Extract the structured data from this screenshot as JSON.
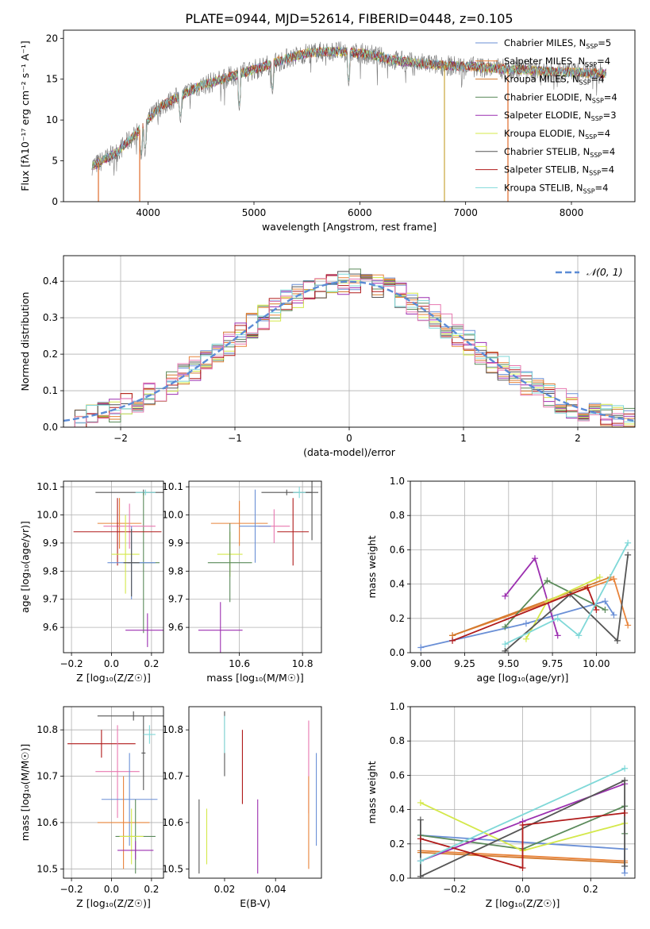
{
  "figure_title": "PLATE=0944, MJD=52614, FIBERID=0448, z=0.105",
  "colors": {
    "Chabrier MILES": "#6a8fd6",
    "Salpeter MILES": "#e8833a",
    "Kroupa MILES": "#d47a2e",
    "Chabrier ELODIE": "#5a8a5a",
    "Salpeter ELODIE": "#9c2fb0",
    "Kroupa ELODIE": "#d4e84a",
    "Chabrier STELIB": "#555555",
    "Salpeter STELIB": "#b01a1a",
    "Kroupa STELIB": "#7fd8d8",
    "extra_pink": "#e878b0",
    "grid": "#b0b0b0",
    "gauss": "#5b8bd6"
  },
  "chart_data": [
    {
      "id": "spectrum",
      "type": "line",
      "title": "PLATE=0944, MJD=52614, FIBERID=0448, z=0.105",
      "xlabel": "wavelength [Angstrom, rest frame]",
      "ylabel": "Flux [fλ10⁻¹⁷ erg cm⁻² s⁻¹ A⁻¹]",
      "xlim": [
        3200,
        8600
      ],
      "ylim": [
        0,
        21
      ],
      "xticks": [
        "4000",
        "5000",
        "6000",
        "7000",
        "8000"
      ],
      "yticks": [
        "0",
        "5",
        "10",
        "15",
        "20"
      ],
      "grid": false,
      "legend_position": "upper right",
      "legend": [
        "Chabrier MILES, N_SSP=5",
        "Salpeter MILES, N_SSP=4",
        "Kroupa MILES, N_SSP=4",
        "Chabrier ELODIE, N_SSP=4",
        "Salpeter ELODIE, N_SSP=3",
        "Kroupa ELODIE, N_SSP=4",
        "Chabrier STELIB, N_SSP=4",
        "Salpeter STELIB, N_SSP=4",
        "Kroupa STELIB, N_SSP=4"
      ],
      "continuum_x": [
        3500,
        3700,
        3900,
        4100,
        4300,
        4500,
        4700,
        4900,
        5100,
        5300,
        5500,
        5700,
        5900,
        6100,
        6300,
        6500,
        6700,
        6900,
        7100,
        7300,
        7500,
        7700,
        7900,
        8100,
        8300
      ],
      "continuum_y": [
        4.5,
        6.0,
        8.5,
        11.5,
        13.0,
        14.2,
        15.0,
        15.8,
        16.6,
        17.5,
        18.2,
        18.4,
        18.3,
        18.0,
        17.4,
        17.0,
        16.8,
        16.6,
        16.5,
        16.3,
        16.2,
        16.0,
        15.9,
        15.8,
        15.7
      ],
      "features": [
        {
          "x": 3935,
          "y": 5.0
        },
        {
          "x": 3970,
          "y": 5.5
        },
        {
          "x": 4305,
          "y": 9.5
        },
        {
          "x": 4861,
          "y": 11.0
        },
        {
          "x": 5175,
          "y": 13.0
        },
        {
          "x": 5895,
          "y": 14.0
        },
        {
          "x": 6563,
          "y": 16.5
        }
      ],
      "spikes": [
        {
          "x": 3530,
          "y": 0
        },
        {
          "x": 3920,
          "y": 0
        },
        {
          "x": 6800,
          "y": 0
        },
        {
          "x": 7400,
          "y": 0
        }
      ]
    },
    {
      "id": "residuals",
      "type": "line",
      "xlabel": "(data-model)/error",
      "ylabel": "Normed distribution",
      "xlim": [
        -2.5,
        2.5
      ],
      "ylim": [
        0,
        0.47
      ],
      "xticks": [
        "−2",
        "−1",
        "0",
        "1",
        "2"
      ],
      "yticks": [
        "0.0",
        "0.1",
        "0.2",
        "0.3",
        "0.4"
      ],
      "grid": true,
      "legend_position": "upper right",
      "legend": [
        "𝒩(0, 1)"
      ],
      "series": [
        {
          "name": "𝒩(0, 1)",
          "kind": "gaussian",
          "mean": 0,
          "sigma": 1
        }
      ],
      "histograms": {
        "bin_width": 0.1,
        "bin_start": -2.5,
        "series_count": 9,
        "amplitude_jitter": 0.035
      }
    },
    {
      "id": "age_vs_Z",
      "type": "scatter",
      "xlabel": "Z [log₁₀(Z/Z☉)]",
      "ylabel": "age  [log₁₀(age/yr)]",
      "xlim": [
        -0.24,
        0.26
      ],
      "ylim": [
        9.51,
        10.12
      ],
      "xticks": [
        "−0.2",
        "0.0",
        "0.2"
      ],
      "yticks": [
        "9.6",
        "9.7",
        "9.8",
        "9.9",
        "10.0",
        "10.1"
      ],
      "grid": true,
      "errorbars": [
        {
          "series": "Chabrier STELIB",
          "x": 0.16,
          "y": 10.08,
          "xerr": 0.24,
          "yerr": 0.01
        },
        {
          "series": "Kroupa STELIB",
          "x": 0.17,
          "y": 10.08,
          "xerr": 0.05,
          "yerr": 0.01
        },
        {
          "series": "Chabrier ELODIE",
          "x": 0.16,
          "y": 9.83,
          "xerr": 0.08,
          "yerr": 0.25
        },
        {
          "series": "Salpeter MILES",
          "x": 0.04,
          "y": 9.97,
          "xerr": 0.11,
          "yerr": 0.09
        },
        {
          "series": "extra_pink",
          "x": 0.09,
          "y": 9.96,
          "xerr": 0.13,
          "yerr": 0.08
        },
        {
          "series": "Salpeter STELIB",
          "x": 0.03,
          "y": 9.94,
          "xerr": 0.22,
          "yerr": 0.12
        },
        {
          "series": "Kroupa ELODIE",
          "x": 0.07,
          "y": 9.86,
          "xerr": 0.07,
          "yerr": 0.14
        },
        {
          "series": "Chabrier MILES",
          "x": 0.1,
          "y": 9.83,
          "xerr": 0.12,
          "yerr": 0.13
        },
        {
          "series": "Chabrier STELIB",
          "x": 0.1,
          "y": 9.83,
          "xerr": 0.04,
          "yerr": 0.12
        },
        {
          "series": "Salpeter ELODIE",
          "x": 0.18,
          "y": 9.59,
          "xerr": 0.11,
          "yerr": 0.06
        }
      ]
    },
    {
      "id": "age_vs_mass",
      "type": "scatter",
      "xlabel": "mass [log₁₀(M/M☉)]",
      "ylabel": "",
      "xlim": [
        10.44,
        10.86
      ],
      "ylim": [
        9.51,
        10.12
      ],
      "xticks": [
        "10.6",
        "10.8"
      ],
      "yticks": [
        "9.6",
        "9.7",
        "9.8",
        "9.9",
        "10.0",
        "10.1"
      ],
      "grid": true,
      "errorbars": [
        {
          "series": "Chabrier STELIB",
          "x": 10.75,
          "y": 10.08,
          "xerr": 0.08,
          "yerr": 0.01
        },
        {
          "series": "Chabrier STELIB",
          "x": 10.83,
          "y": 10.08,
          "xerr": 0.02,
          "yerr": 0.17
        },
        {
          "series": "Kroupa STELIB",
          "x": 10.79,
          "y": 10.08,
          "xerr": 0.02,
          "yerr": 0.02
        },
        {
          "series": "Salpeter MILES",
          "x": 10.6,
          "y": 9.97,
          "xerr": 0.09,
          "yerr": 0.08
        },
        {
          "series": "extra_pink",
          "x": 10.71,
          "y": 9.96,
          "xerr": 0.05,
          "yerr": 0.06
        },
        {
          "series": "Chabrier MILES",
          "x": 10.65,
          "y": 9.96,
          "xerr": 0.05,
          "yerr": 0.13
        },
        {
          "series": "Salpeter STELIB",
          "x": 10.77,
          "y": 9.94,
          "xerr": 0.05,
          "yerr": 0.12
        },
        {
          "series": "Kroupa ELODIE",
          "x": 10.57,
          "y": 9.86,
          "xerr": 0.04,
          "yerr": 0.08
        },
        {
          "series": "Chabrier ELODIE",
          "x": 10.57,
          "y": 9.83,
          "xerr": 0.07,
          "yerr": 0.14
        },
        {
          "series": "Salpeter ELODIE",
          "x": 10.54,
          "y": 9.59,
          "xerr": 0.07,
          "yerr": 0.1
        }
      ]
    },
    {
      "id": "massweight_vs_age",
      "type": "line",
      "xlabel": "age  [log₁₀(age/yr)]",
      "ylabel": "mass weight",
      "xlim": [
        8.94,
        10.22
      ],
      "ylim": [
        0,
        1.0
      ],
      "xticks": [
        "9.00",
        "9.25",
        "9.50",
        "9.75",
        "10.00"
      ],
      "yticks": [
        "0.0",
        "0.2",
        "0.4",
        "0.6",
        "0.8",
        "1.0"
      ],
      "grid": true,
      "series": [
        {
          "name": "Chabrier MILES",
          "x": [
            9.0,
            9.6,
            10.05,
            10.1
          ],
          "y": [
            0.03,
            0.17,
            0.3,
            0.22
          ]
        },
        {
          "name": "Salpeter MILES",
          "x": [
            9.18,
            10.1,
            10.18
          ],
          "y": [
            0.1,
            0.43,
            0.16
          ]
        },
        {
          "name": "Kroupa MILES",
          "x": [
            9.18,
            10.08
          ],
          "y": [
            0.1,
            0.44
          ]
        },
        {
          "name": "Chabrier ELODIE",
          "x": [
            9.48,
            9.72,
            10.05
          ],
          "y": [
            0.15,
            0.42,
            0.25
          ]
        },
        {
          "name": "Salpeter ELODIE",
          "x": [
            9.48,
            9.65,
            9.78
          ],
          "y": [
            0.33,
            0.55,
            0.1
          ]
        },
        {
          "name": "Kroupa ELODIE",
          "x": [
            9.6,
            9.72,
            10.02
          ],
          "y": [
            0.08,
            0.3,
            0.44
          ]
        },
        {
          "name": "Chabrier STELIB",
          "x": [
            9.48,
            9.85,
            10.12,
            10.18
          ],
          "y": [
            0.01,
            0.34,
            0.07,
            0.57
          ]
        },
        {
          "name": "Salpeter STELIB",
          "x": [
            9.18,
            9.95,
            10.0
          ],
          "y": [
            0.07,
            0.38,
            0.25
          ]
        },
        {
          "name": "Kroupa STELIB",
          "x": [
            9.48,
            9.78,
            9.9,
            10.18
          ],
          "y": [
            0.05,
            0.2,
            0.1,
            0.64
          ]
        }
      ]
    },
    {
      "id": "mass_vs_Z",
      "type": "scatter",
      "xlabel": "Z [log₁₀(Z/Z☉)]",
      "ylabel": "mass [log₁₀(M/M☉)]",
      "xlim": [
        -0.24,
        0.26
      ],
      "ylim": [
        10.48,
        10.85
      ],
      "xticks": [
        "−0.2",
        "0.0",
        "0.2"
      ],
      "yticks": [
        "10.5",
        "10.6",
        "10.7",
        "10.8"
      ],
      "grid": true,
      "errorbars": [
        {
          "series": "Chabrier STELIB",
          "x": 0.11,
          "y": 10.83,
          "xerr": 0.18,
          "yerr": 0.01
        },
        {
          "series": "Chabrier STELIB",
          "x": 0.16,
          "y": 10.75,
          "xerr": 0.01,
          "yerr": 0.08
        },
        {
          "series": "Kroupa STELIB",
          "x": 0.19,
          "y": 10.79,
          "xerr": 0.03,
          "yerr": 0.02
        },
        {
          "series": "Salpeter STELIB",
          "x": -0.05,
          "y": 10.77,
          "xerr": 0.17,
          "yerr": 0.03
        },
        {
          "series": "extra_pink",
          "x": 0.03,
          "y": 10.71,
          "xerr": 0.11,
          "yerr": 0.1
        },
        {
          "series": "Chabrier MILES",
          "x": 0.09,
          "y": 10.65,
          "xerr": 0.14,
          "yerr": 0.1
        },
        {
          "series": "Salpeter MILES",
          "x": 0.06,
          "y": 10.6,
          "xerr": 0.13,
          "yerr": 0.1
        },
        {
          "series": "Chabrier ELODIE",
          "x": 0.12,
          "y": 10.57,
          "xerr": 0.1,
          "yerr": 0.08
        },
        {
          "series": "Kroupa ELODIE",
          "x": 0.1,
          "y": 10.57,
          "xerr": 0.06,
          "yerr": 0.06
        },
        {
          "series": "Salpeter ELODIE",
          "x": 0.12,
          "y": 10.54,
          "xerr": 0.09,
          "yerr": 0.02
        }
      ]
    },
    {
      "id": "mass_vs_ebv",
      "type": "scatter",
      "xlabel": "E(B-V)",
      "ylabel": "",
      "xlim": [
        0.006,
        0.058
      ],
      "ylim": [
        10.48,
        10.85
      ],
      "xticks": [
        "0.02",
        "0.04"
      ],
      "yticks": [
        "10.5",
        "10.6",
        "10.7",
        "10.8"
      ],
      "grid": false,
      "errorbars": [
        {
          "series": "Chabrier STELIB",
          "x": 0.02,
          "y": 10.77,
          "xerr": 0,
          "yerr": 0.07
        },
        {
          "series": "Kroupa STELIB",
          "x": 0.02,
          "y": 10.79,
          "xerr": 0,
          "yerr": 0.04
        },
        {
          "series": "Salpeter STELIB",
          "x": 0.027,
          "y": 10.72,
          "xerr": 0,
          "yerr": 0.08
        },
        {
          "series": "Chabrier STELIB",
          "x": 0.01,
          "y": 10.57,
          "xerr": 0,
          "yerr": 0.08
        },
        {
          "series": "Kroupa ELODIE",
          "x": 0.013,
          "y": 10.57,
          "xerr": 0,
          "yerr": 0.06
        },
        {
          "series": "Salpeter ELODIE",
          "x": 0.033,
          "y": 10.57,
          "xerr": 0,
          "yerr": 0.08
        },
        {
          "series": "extra_pink",
          "x": 0.053,
          "y": 10.72,
          "xerr": 0,
          "yerr": 0.1
        },
        {
          "series": "Salpeter MILES",
          "x": 0.053,
          "y": 10.6,
          "xerr": 0,
          "yerr": 0.1
        },
        {
          "series": "Chabrier MILES",
          "x": 0.056,
          "y": 10.65,
          "xerr": 0,
          "yerr": 0.1
        }
      ]
    },
    {
      "id": "massweight_vs_Z",
      "type": "line",
      "xlabel": "Z [log₁₀(Z/Z☉)]",
      "ylabel": "mass weight",
      "xlim": [
        -0.33,
        0.33
      ],
      "ylim": [
        0,
        1.0
      ],
      "xticks": [
        "−0.2",
        "0.0",
        "0.2"
      ],
      "yticks": [
        "0.0",
        "0.2",
        "0.4",
        "0.6",
        "0.8",
        "1.0"
      ],
      "grid": true,
      "series": [
        {
          "name": "Chabrier MILES",
          "x": [
            -0.3,
            0.3,
            0.3
          ],
          "y": [
            0.25,
            0.17,
            0.03
          ]
        },
        {
          "name": "Salpeter MILES",
          "x": [
            -0.3,
            0.3
          ],
          "y": [
            0.16,
            0.1
          ]
        },
        {
          "name": "Kroupa MILES",
          "x": [
            -0.3,
            0.3
          ],
          "y": [
            0.15,
            0.09
          ]
        },
        {
          "name": "Chabrier ELODIE",
          "x": [
            -0.3,
            0.0,
            0.3,
            0.3
          ],
          "y": [
            0.25,
            0.17,
            0.42,
            0.26
          ]
        },
        {
          "name": "Salpeter ELODIE",
          "x": [
            -0.3,
            0.0,
            0.3
          ],
          "y": [
            0.1,
            0.33,
            0.55
          ]
        },
        {
          "name": "Kroupa ELODIE",
          "x": [
            -0.3,
            0.0,
            0.3
          ],
          "y": [
            0.44,
            0.16,
            0.32
          ]
        },
        {
          "name": "Chabrier STELIB",
          "x": [
            -0.3,
            -0.3,
            0.3,
            0.3
          ],
          "y": [
            0.34,
            0.01,
            0.57,
            0.07
          ]
        },
        {
          "name": "Salpeter STELIB",
          "x": [
            -0.3,
            0.0,
            0.0,
            0.3
          ],
          "y": [
            0.23,
            0.06,
            0.31,
            0.38
          ]
        },
        {
          "name": "Kroupa STELIB",
          "x": [
            -0.3,
            0.3
          ],
          "y": [
            0.1,
            0.64
          ]
        }
      ]
    }
  ]
}
